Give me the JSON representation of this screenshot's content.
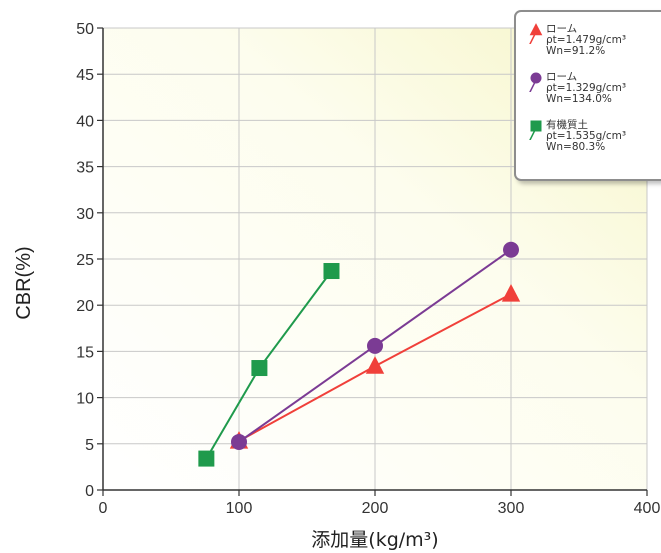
{
  "chart_data": {
    "type": "line",
    "title": "",
    "xlabel": "添加量(kg/m³)",
    "ylabel": "CBR(%)",
    "xlim": [
      0,
      400
    ],
    "ylim": [
      0,
      50
    ],
    "xticks": [
      "0",
      "100",
      "200",
      "300",
      "400"
    ],
    "yticks": [
      "0",
      "5",
      "10",
      "15",
      "20",
      "25",
      "30",
      "35",
      "40",
      "45",
      "50"
    ],
    "grid": true,
    "legend_position": "top-right",
    "series": [
      {
        "name": "ローム",
        "name_lines": [
          "ローム",
          "ρt=1.479g/cm³",
          "Wn=91.2%"
        ],
        "marker": "triangle",
        "color": "#f0403a",
        "x": [
          100,
          200,
          300
        ],
        "y": [
          5.3,
          13.4,
          21.2
        ]
      },
      {
        "name": "ローム",
        "name_lines": [
          "ローム",
          "ρt=1.329g/cm³",
          "Wn=134.0%"
        ],
        "marker": "circle",
        "color": "#7b3b94",
        "x": [
          100,
          200,
          300
        ],
        "y": [
          5.2,
          15.6,
          26.0
        ]
      },
      {
        "name": "有機質土",
        "name_lines": [
          "有機質土",
          "ρt=1.535g/cm³",
          "Wn=80.3%"
        ],
        "marker": "square",
        "color": "#1f9a4c",
        "x": [
          76,
          115,
          168
        ],
        "y": [
          3.4,
          13.2,
          23.7
        ]
      }
    ]
  }
}
